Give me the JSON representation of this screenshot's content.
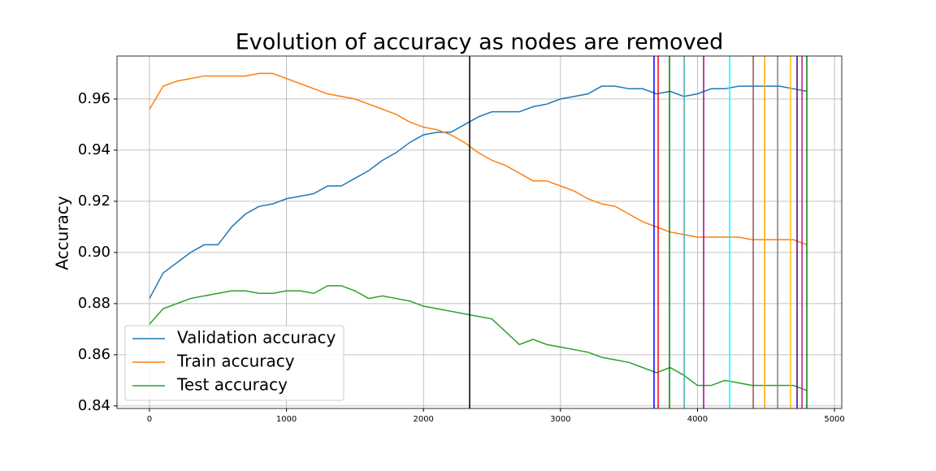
{
  "chart_data": {
    "type": "line",
    "title": "Evolution of accuracy as nodes are removed",
    "ylabel": "Accuracy",
    "x": [
      0,
      100,
      200,
      300,
      400,
      500,
      600,
      700,
      800,
      900,
      1000,
      1100,
      1200,
      1300,
      1400,
      1500,
      1600,
      1700,
      1800,
      1900,
      2000,
      2100,
      2200,
      2300,
      2400,
      2500,
      2600,
      2700,
      2800,
      2900,
      3000,
      3100,
      3200,
      3300,
      3400,
      3500,
      3600,
      3700,
      3800,
      3900,
      4000,
      4100,
      4200,
      4300,
      4400,
      4500,
      4600,
      4700,
      4800
    ],
    "series": [
      {
        "name": "Validation accuracy",
        "color": "#1f77b4",
        "values": [
          0.882,
          0.892,
          0.896,
          0.9,
          0.903,
          0.903,
          0.91,
          0.915,
          0.918,
          0.919,
          0.921,
          0.922,
          0.923,
          0.926,
          0.926,
          0.929,
          0.932,
          0.936,
          0.939,
          0.943,
          0.946,
          0.947,
          0.947,
          0.95,
          0.953,
          0.955,
          0.955,
          0.955,
          0.957,
          0.958,
          0.96,
          0.961,
          0.962,
          0.965,
          0.965,
          0.964,
          0.964,
          0.962,
          0.963,
          0.961,
          0.962,
          0.964,
          0.964,
          0.965,
          0.965,
          0.965,
          0.965,
          0.964,
          0.963
        ]
      },
      {
        "name": "Train accuracy",
        "color": "#ff7f0e",
        "values": [
          0.956,
          0.965,
          0.967,
          0.968,
          0.969,
          0.969,
          0.969,
          0.969,
          0.97,
          0.97,
          0.968,
          0.966,
          0.964,
          0.962,
          0.961,
          0.96,
          0.958,
          0.956,
          0.954,
          0.951,
          0.949,
          0.948,
          0.946,
          0.943,
          0.939,
          0.936,
          0.934,
          0.931,
          0.928,
          0.928,
          0.926,
          0.924,
          0.921,
          0.919,
          0.918,
          0.915,
          0.912,
          0.91,
          0.908,
          0.907,
          0.906,
          0.906,
          0.906,
          0.906,
          0.905,
          0.905,
          0.905,
          0.905,
          0.903
        ]
      },
      {
        "name": "Test accuracy",
        "color": "#2ca02c",
        "values": [
          0.872,
          0.878,
          0.88,
          0.882,
          0.883,
          0.884,
          0.885,
          0.885,
          0.884,
          0.884,
          0.885,
          0.885,
          0.884,
          0.887,
          0.887,
          0.885,
          0.882,
          0.883,
          0.882,
          0.881,
          0.879,
          0.878,
          0.877,
          0.876,
          0.875,
          0.874,
          0.869,
          0.864,
          0.866,
          0.864,
          0.863,
          0.862,
          0.861,
          0.859,
          0.858,
          0.857,
          0.855,
          0.853,
          0.855,
          0.852,
          0.848,
          0.848,
          0.85,
          0.849,
          0.848,
          0.848,
          0.848,
          0.848,
          0.846
        ]
      }
    ],
    "vlines": [
      {
        "x": 2337,
        "color": "#000000"
      },
      {
        "x": 3683,
        "color": "#0000ff"
      },
      {
        "x": 3713,
        "color": "#ff0000"
      },
      {
        "x": 3796,
        "color": "#008000"
      },
      {
        "x": 3903,
        "color": "#40b0b0"
      },
      {
        "x": 4045,
        "color": "#a000a0"
      },
      {
        "x": 4235,
        "color": "#00ffff"
      },
      {
        "x": 4407,
        "color": "#8c564b"
      },
      {
        "x": 4490,
        "color": "#ffa500"
      },
      {
        "x": 4585,
        "color": "#808080"
      },
      {
        "x": 4680,
        "color": "#ffc000"
      },
      {
        "x": 4727,
        "color": "#4b0082"
      },
      {
        "x": 4763,
        "color": "#c71585"
      },
      {
        "x": 4798,
        "color": "#008000"
      }
    ],
    "xlim": [
      -237,
      5053
    ],
    "xticks": [
      0,
      1000,
      2000,
      3000,
      4000,
      5000
    ],
    "ylim": [
      0.839,
      0.9768
    ],
    "yticks": [
      0.84,
      0.86,
      0.88,
      {
        "value": 0.9,
        "label": "0.90"
      },
      0.92,
      0.94,
      0.96
    ],
    "grid": true,
    "legend": "lower left"
  }
}
